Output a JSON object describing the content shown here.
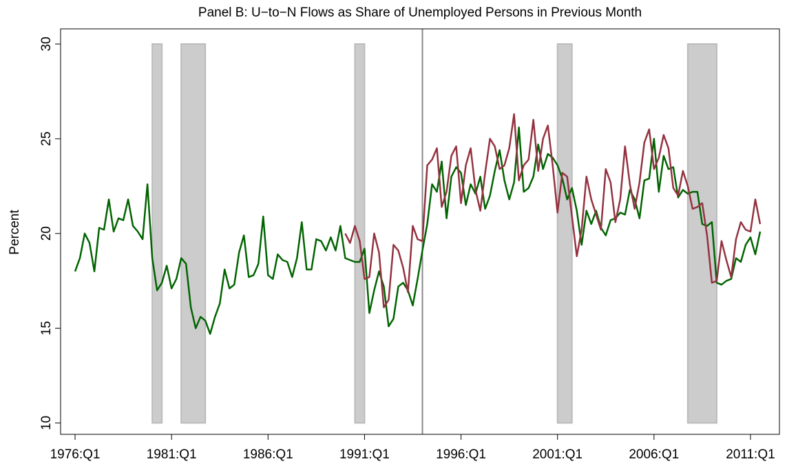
{
  "chart_data": {
    "type": "line",
    "title": "Panel B: U−to−N Flows as Share of Unemployed Persons in Previous Month",
    "y_label": "Percent",
    "x": [
      1976,
      1976.25,
      1976.5,
      1976.75,
      1977,
      1977.25,
      1977.5,
      1977.75,
      1978,
      1978.25,
      1978.5,
      1978.75,
      1979,
      1979.25,
      1979.5,
      1979.75,
      1980,
      1980.25,
      1980.5,
      1980.75,
      1981,
      1981.25,
      1981.5,
      1981.75,
      1982,
      1982.25,
      1982.5,
      1982.75,
      1983,
      1983.25,
      1983.5,
      1983.75,
      1984,
      1984.25,
      1984.5,
      1984.75,
      1985,
      1985.25,
      1985.5,
      1985.75,
      1986,
      1986.25,
      1986.5,
      1986.75,
      1987,
      1987.25,
      1987.5,
      1987.75,
      1988,
      1988.25,
      1988.5,
      1988.75,
      1989,
      1989.25,
      1989.5,
      1989.75,
      1990,
      1990.25,
      1990.5,
      1990.75,
      1991,
      1991.25,
      1991.5,
      1991.75,
      1992,
      1992.25,
      1992.5,
      1992.75,
      1993,
      1993.25,
      1993.5,
      1993.75,
      1994,
      1994.25,
      1994.5,
      1994.75,
      1995,
      1995.25,
      1995.5,
      1995.75,
      1996,
      1996.25,
      1996.5,
      1996.75,
      1997,
      1997.25,
      1997.5,
      1997.75,
      1998,
      1998.25,
      1998.5,
      1998.75,
      1999,
      1999.25,
      1999.5,
      1999.75,
      2000,
      2000.25,
      2000.5,
      2000.75,
      2001,
      2001.25,
      2001.5,
      2001.75,
      2002,
      2002.25,
      2002.5,
      2002.75,
      2003,
      2003.25,
      2003.5,
      2003.75,
      2004,
      2004.25,
      2004.5,
      2004.75,
      2005,
      2005.25,
      2005.5,
      2005.75,
      2006,
      2006.25,
      2006.5,
      2006.75,
      2007,
      2007.25,
      2007.5,
      2007.75,
      2008,
      2008.25,
      2008.5,
      2008.75,
      2009,
      2009.25,
      2009.5,
      2009.75,
      2010,
      2010.25,
      2010.5,
      2010.75,
      2011,
      2011.25,
      2011.5
    ],
    "series": [
      {
        "color": "#006400",
        "values": [
          18.0,
          18.7,
          20.0,
          19.5,
          18.0,
          20.3,
          20.2,
          21.8,
          20.1,
          20.8,
          20.7,
          21.8,
          20.4,
          20.1,
          19.7,
          22.6,
          18.7,
          17.0,
          17.4,
          18.3,
          17.1,
          17.6,
          18.7,
          18.4,
          16.1,
          15.0,
          15.6,
          15.4,
          14.7,
          15.6,
          16.3,
          18.1,
          17.1,
          17.3,
          19.0,
          19.9,
          17.7,
          17.8,
          18.4,
          20.9,
          17.8,
          17.6,
          18.9,
          18.6,
          18.5,
          17.7,
          18.7,
          20.6,
          18.1,
          18.1,
          19.7,
          19.6,
          19.1,
          19.8,
          19.1,
          20.4,
          18.7,
          18.6,
          18.5,
          18.5,
          19.2,
          15.8,
          17.0,
          18.0,
          17.2,
          15.1,
          15.5,
          17.2,
          17.4,
          17.0,
          16.2,
          17.6,
          19.1,
          20.5,
          22.6,
          22.2,
          23.8,
          20.8,
          23.0,
          23.5,
          23.2,
          21.5,
          22.6,
          22.1,
          23.0,
          21.3,
          22.0,
          23.3,
          24.4,
          22.8,
          21.8,
          22.7,
          25.6,
          22.2,
          22.4,
          23.0,
          24.7,
          23.4,
          24.2,
          24.0,
          23.6,
          22.9,
          21.8,
          22.4,
          21.2,
          19.4,
          21.2,
          20.5,
          21.2,
          20.3,
          19.9,
          20.7,
          20.8,
          21.1,
          21.0,
          22.3,
          21.8,
          20.8,
          22.8,
          22.9,
          25.0,
          22.2,
          24.1,
          23.4,
          23.5,
          21.9,
          22.3,
          22.1,
          22.2,
          22.2,
          20.5,
          20.4,
          20.6,
          17.4,
          17.3,
          17.5,
          17.6,
          18.7,
          18.5,
          19.4,
          19.8,
          18.9,
          20.1
        ]
      },
      {
        "color": "#943240",
        "values": [
          null,
          null,
          null,
          null,
          null,
          null,
          null,
          null,
          null,
          null,
          null,
          null,
          null,
          null,
          null,
          null,
          null,
          null,
          null,
          null,
          null,
          null,
          null,
          null,
          null,
          null,
          null,
          null,
          null,
          null,
          null,
          null,
          null,
          null,
          null,
          null,
          null,
          null,
          null,
          null,
          null,
          null,
          null,
          null,
          null,
          null,
          null,
          null,
          null,
          null,
          null,
          null,
          null,
          null,
          null,
          null,
          20.0,
          19.5,
          20.4,
          19.6,
          17.6,
          17.7,
          20.0,
          19.0,
          16.1,
          16.5,
          19.4,
          19.1,
          18.2,
          16.9,
          20.4,
          19.7,
          19.6,
          23.6,
          23.9,
          24.5,
          21.4,
          22.2,
          24.1,
          24.6,
          21.6,
          23.6,
          24.5,
          22.3,
          21.2,
          23.2,
          25.0,
          24.6,
          23.4,
          23.6,
          24.5,
          26.3,
          22.8,
          23.6,
          23.9,
          26.0,
          23.3,
          25.0,
          25.7,
          23.6,
          21.1,
          23.2,
          23.0,
          20.9,
          18.8,
          20.2,
          23.0,
          21.8,
          21.0,
          20.2,
          23.4,
          22.7,
          20.6,
          21.8,
          24.6,
          22.6,
          21.3,
          22.7,
          24.8,
          25.5,
          23.4,
          24.0,
          25.2,
          24.5,
          22.4,
          22.0,
          23.3,
          22.5,
          21.3,
          21.4,
          21.6,
          19.9,
          17.4,
          17.5,
          19.6,
          18.6,
          17.7,
          19.7,
          20.6,
          20.2,
          20.1,
          21.8,
          20.5
        ]
      }
    ],
    "xlim": [
      1975.25,
      2012.5
    ],
    "xticks": [
      {
        "value": 1976,
        "label": "1976:Q1"
      },
      {
        "value": 1981,
        "label": "1981:Q1"
      },
      {
        "value": 1986,
        "label": "1986:Q1"
      },
      {
        "value": 1991,
        "label": "1991:Q1"
      },
      {
        "value": 1996,
        "label": "1996:Q1"
      },
      {
        "value": 2001,
        "label": "2001:Q1"
      },
      {
        "value": 2006,
        "label": "2006:Q1"
      },
      {
        "value": 2011,
        "label": "2011:Q1"
      }
    ],
    "ylim": [
      9.4,
      30.8
    ],
    "yticks": [
      10,
      15,
      20,
      25,
      30
    ],
    "shaded_periods": [
      [
        1980,
        1980.5
      ],
      [
        1981.5,
        1982.75
      ],
      [
        1990.5,
        1991.0
      ],
      [
        2001.0,
        2001.75
      ],
      [
        2007.75,
        2009.25
      ]
    ],
    "shade_color": "#cccccc",
    "vline": 1994.0
  }
}
